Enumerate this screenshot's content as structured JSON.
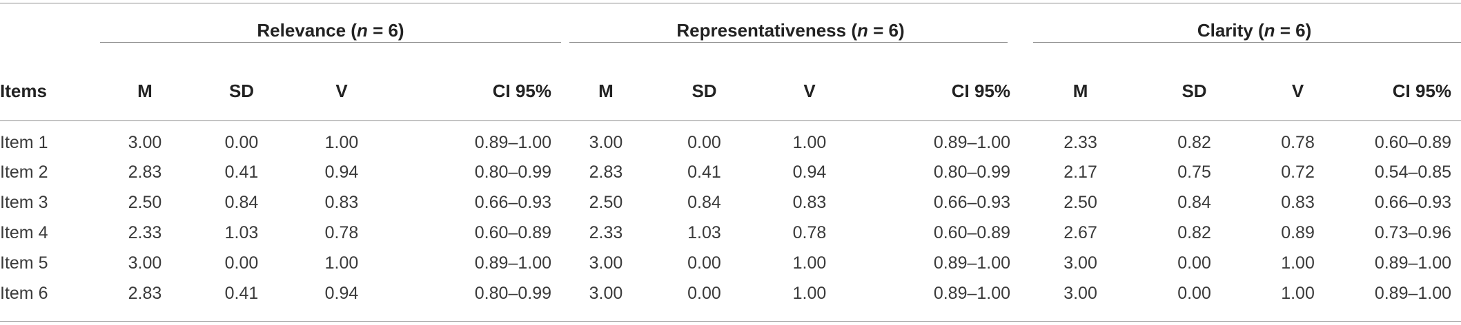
{
  "groups": [
    {
      "label": "Relevance",
      "n_label": "n",
      "n_eq": " = 6)",
      "open": " ("
    },
    {
      "label": "Representativeness",
      "n_label": "n",
      "n_eq": " = 6)",
      "open": " ("
    },
    {
      "label": "Clarity",
      "n_label": "n",
      "n_eq": " = 6)",
      "open": " ("
    }
  ],
  "columns": {
    "items": "Items",
    "m": "M",
    "sd": "SD",
    "v": "V",
    "ci": "CI 95%"
  },
  "rows": [
    {
      "item": "Item 1",
      "r": [
        "3.00",
        "0.00",
        "1.00",
        "0.89–1.00"
      ],
      "p": [
        "3.00",
        "0.00",
        "1.00",
        "0.89–1.00"
      ],
      "c": [
        "2.33",
        "0.82",
        "0.78",
        "0.60–0.89"
      ]
    },
    {
      "item": "Item 2",
      "r": [
        "2.83",
        "0.41",
        "0.94",
        "0.80–0.99"
      ],
      "p": [
        "2.83",
        "0.41",
        "0.94",
        "0.80–0.99"
      ],
      "c": [
        "2.17",
        "0.75",
        "0.72",
        "0.54–0.85"
      ]
    },
    {
      "item": "Item 3",
      "r": [
        "2.50",
        "0.84",
        "0.83",
        "0.66–0.93"
      ],
      "p": [
        "2.50",
        "0.84",
        "0.83",
        "0.66–0.93"
      ],
      "c": [
        "2.50",
        "0.84",
        "0.83",
        "0.66–0.93"
      ]
    },
    {
      "item": "Item 4",
      "r": [
        "2.33",
        "1.03",
        "0.78",
        "0.60–0.89"
      ],
      "p": [
        "2.33",
        "1.03",
        "0.78",
        "0.60–0.89"
      ],
      "c": [
        "2.67",
        "0.82",
        "0.89",
        "0.73–0.96"
      ]
    },
    {
      "item": "Item 5",
      "r": [
        "3.00",
        "0.00",
        "1.00",
        "0.89–1.00"
      ],
      "p": [
        "3.00",
        "0.00",
        "1.00",
        "0.89–1.00"
      ],
      "c": [
        "3.00",
        "0.00",
        "1.00",
        "0.89–1.00"
      ]
    },
    {
      "item": "Item 6",
      "r": [
        "2.83",
        "0.41",
        "0.94",
        "0.80–0.99"
      ],
      "p": [
        "3.00",
        "0.00",
        "1.00",
        "0.89–1.00"
      ],
      "c": [
        "3.00",
        "0.00",
        "1.00",
        "0.89–1.00"
      ]
    }
  ]
}
